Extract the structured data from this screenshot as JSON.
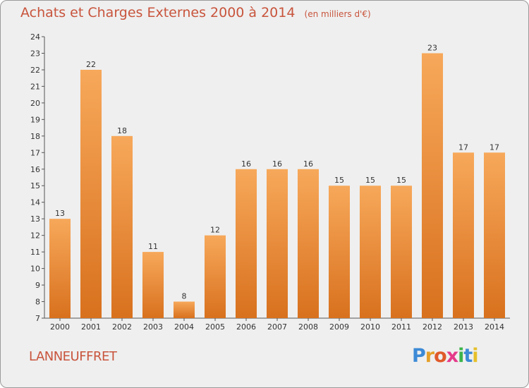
{
  "header": {
    "title": "Achats et Charges Externes 2000 à 2014",
    "subtitle": "(en milliers d'€)"
  },
  "footer": {
    "place": "LANNEUFFRET",
    "logo_letters": [
      {
        "ch": "P",
        "color": "#3c8ad6"
      },
      {
        "ch": "r",
        "color": "#e5a02a"
      },
      {
        "ch": "o",
        "color": "#e05a2a"
      },
      {
        "ch": "x",
        "color": "#e53a8a"
      },
      {
        "ch": "i",
        "color": "#3cb44a"
      },
      {
        "ch": "t",
        "color": "#3c8ad6"
      },
      {
        "ch": "i",
        "color": "#e5c02a"
      }
    ]
  },
  "chart_data": {
    "type": "bar",
    "categories": [
      "2000",
      "2001",
      "2002",
      "2003",
      "2004",
      "2005",
      "2006",
      "2007",
      "2008",
      "2009",
      "2010",
      "2011",
      "2012",
      "2013",
      "2014"
    ],
    "values": [
      13,
      22,
      18,
      11,
      8,
      12,
      16,
      16,
      16,
      15,
      15,
      15,
      23,
      17,
      17
    ],
    "ylim": [
      7,
      24
    ],
    "yticks": [
      7,
      8,
      9,
      10,
      11,
      12,
      13,
      14,
      15,
      16,
      17,
      18,
      19,
      20,
      21,
      22,
      23,
      24
    ],
    "grid": false,
    "bar_color_light": "#f7a85a",
    "bar_color_dark": "#d8711e"
  }
}
